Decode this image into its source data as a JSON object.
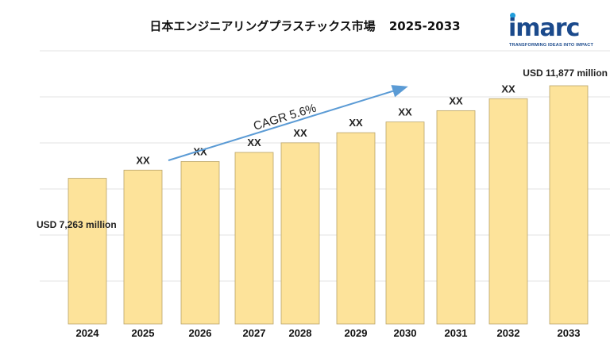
{
  "title": {
    "text": "日本エンジニアリングプラスチックス市場",
    "years": "2025-2033"
  },
  "logo": {
    "word": "imarc",
    "tagline": "TRANSFORMING IDEAS INTO IMPACT",
    "color_primary": "#1b4a8c",
    "color_accent": "#1f9ddb"
  },
  "colors": {
    "bar_fill": "#fde39a",
    "bar_stroke": "#b9a46a",
    "arrow": "#5b9bd5",
    "grid": "#e3e3e3"
  },
  "chart_data": {
    "type": "bar",
    "categories": [
      "2024",
      "2025",
      "2026",
      "2027",
      "2028",
      "2029",
      "2030",
      "2031",
      "2032",
      "2033"
    ],
    "values": [
      7263,
      7670,
      8099,
      8553,
      9032,
      9537,
      10071,
      10635,
      11231,
      11877
    ],
    "value_labels": [
      "USD 7,263 million",
      "XX",
      "XX",
      "XX",
      "XX",
      "XX",
      "XX",
      "XX",
      "XX",
      "USD 11,877 million"
    ],
    "ylim": [
      0,
      13000
    ],
    "grid": true,
    "annotation": "CAGR  5.6%",
    "xlabel": "",
    "ylabel": ""
  }
}
